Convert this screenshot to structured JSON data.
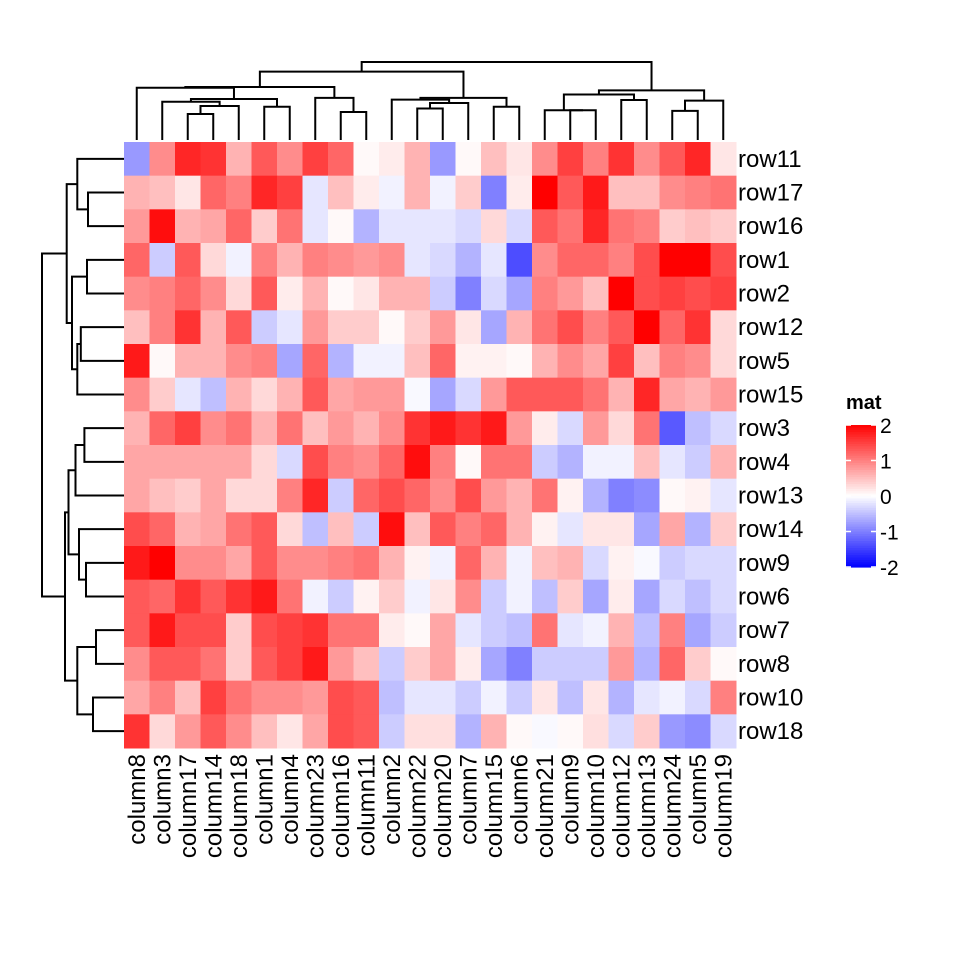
{
  "chart_data": {
    "type": "heatmap",
    "title": "",
    "legend": {
      "title": "mat",
      "ticks": [
        2,
        1,
        0,
        -1,
        -2
      ],
      "range": [
        -2,
        2
      ],
      "colors": {
        "low": "#0000FF",
        "mid": "#FFFFFF",
        "high": "#FF0000"
      },
      "placement": "right"
    },
    "columns": [
      "column8",
      "column3",
      "column17",
      "column14",
      "column18",
      "column1",
      "column4",
      "column23",
      "column16",
      "column11",
      "column2",
      "column22",
      "column20",
      "column7",
      "column15",
      "column6",
      "column21",
      "column9",
      "column10",
      "column12",
      "column13",
      "column24",
      "column5",
      "column19"
    ],
    "rows": [
      "row11",
      "row17",
      "row16",
      "row1",
      "row2",
      "row12",
      "row5",
      "row15",
      "row3",
      "row4",
      "row13",
      "row14",
      "row9",
      "row6",
      "row7",
      "row8",
      "row10",
      "row18"
    ],
    "values": [
      [
        -0.8,
        0.9,
        1.7,
        1.6,
        0.6,
        1.3,
        0.9,
        1.5,
        1.2,
        0.05,
        0.15,
        0.6,
        -0.8,
        0.05,
        0.5,
        0.2,
        0.9,
        1.5,
        1.0,
        1.6,
        0.9,
        1.3,
        1.7,
        0.2
      ],
      [
        0.6,
        0.5,
        0.2,
        1.2,
        1.0,
        1.7,
        1.5,
        -0.2,
        0.5,
        0.15,
        -0.1,
        0.6,
        -0.1,
        0.4,
        -1.0,
        0.15,
        2.0,
        1.3,
        1.8,
        0.5,
        0.5,
        0.9,
        1.0,
        1.1
      ],
      [
        0.8,
        1.9,
        0.6,
        0.7,
        1.2,
        0.4,
        1.1,
        -0.2,
        0.05,
        -0.6,
        -0.2,
        -0.2,
        -0.2,
        -0.3,
        0.3,
        -0.3,
        1.3,
        1.1,
        1.7,
        1.1,
        1.0,
        0.4,
        0.5,
        0.4
      ],
      [
        1.2,
        -0.4,
        1.3,
        0.3,
        -0.1,
        1.0,
        0.6,
        1.0,
        0.9,
        0.8,
        0.9,
        -0.2,
        -0.3,
        -0.6,
        -0.2,
        -1.4,
        0.9,
        1.2,
        1.2,
        1.0,
        1.4,
        2.0,
        2.0,
        1.4
      ],
      [
        0.9,
        1.0,
        1.2,
        0.9,
        0.3,
        1.3,
        0.15,
        0.6,
        0.05,
        0.2,
        0.6,
        0.6,
        -0.4,
        -1.0,
        -0.3,
        -0.7,
        1.0,
        0.8,
        0.5,
        2.0,
        1.4,
        1.5,
        1.4,
        1.5
      ],
      [
        0.5,
        1.0,
        1.6,
        0.6,
        1.3,
        -0.4,
        -0.2,
        0.8,
        0.4,
        0.4,
        0.05,
        0.4,
        0.8,
        0.2,
        -0.7,
        0.6,
        1.1,
        1.4,
        1.0,
        1.3,
        2.0,
        1.2,
        1.6,
        0.3
      ],
      [
        1.8,
        0.05,
        0.6,
        0.6,
        0.9,
        1.0,
        -0.7,
        1.2,
        -0.6,
        -0.1,
        -0.1,
        0.5,
        1.2,
        0.1,
        0.1,
        0.05,
        0.6,
        0.9,
        0.7,
        1.5,
        0.5,
        1.0,
        0.9,
        0.3
      ],
      [
        0.9,
        0.4,
        -0.2,
        -0.5,
        0.6,
        0.3,
        0.6,
        1.3,
        0.7,
        0.8,
        0.8,
        -0.05,
        -0.7,
        -0.3,
        0.8,
        1.3,
        1.3,
        1.3,
        1.1,
        0.6,
        1.7,
        0.7,
        0.6,
        0.8
      ],
      [
        0.6,
        1.2,
        1.5,
        0.9,
        1.1,
        0.6,
        1.1,
        0.5,
        0.8,
        0.6,
        0.9,
        1.6,
        1.8,
        1.6,
        1.8,
        0.8,
        0.15,
        -0.3,
        0.8,
        0.3,
        1.1,
        -1.3,
        -0.5,
        -0.3
      ],
      [
        0.7,
        0.7,
        0.7,
        0.7,
        0.7,
        0.3,
        -0.3,
        1.4,
        1.0,
        0.9,
        1.2,
        1.9,
        1.0,
        0.05,
        1.1,
        1.1,
        -0.4,
        -0.6,
        -0.1,
        -0.1,
        0.5,
        -0.2,
        -0.4,
        0.6
      ],
      [
        0.7,
        0.5,
        0.4,
        0.7,
        0.3,
        0.3,
        1.0,
        1.7,
        -0.4,
        1.2,
        1.4,
        1.2,
        0.9,
        1.4,
        0.8,
        0.6,
        1.1,
        0.1,
        -0.6,
        -1.0,
        -0.9,
        0.05,
        0.1,
        -0.2
      ],
      [
        1.4,
        1.2,
        0.6,
        0.7,
        1.1,
        1.3,
        0.3,
        -0.5,
        0.5,
        -0.4,
        1.9,
        0.5,
        1.3,
        1.0,
        1.2,
        0.6,
        0.1,
        -0.2,
        0.2,
        0.2,
        -0.7,
        0.7,
        -0.6,
        0.4
      ],
      [
        1.8,
        2.0,
        0.9,
        0.9,
        0.7,
        1.3,
        0.9,
        0.9,
        1.0,
        1.1,
        0.6,
        0.1,
        -0.1,
        1.2,
        0.6,
        -0.1,
        0.5,
        0.6,
        -0.3,
        0.1,
        -0.05,
        -0.4,
        -0.3,
        -0.3
      ],
      [
        1.3,
        1.2,
        1.6,
        1.3,
        1.6,
        1.8,
        1.1,
        -0.1,
        -0.4,
        0.1,
        0.4,
        -0.1,
        0.2,
        0.9,
        -0.4,
        -0.1,
        -0.5,
        0.4,
        -0.7,
        0.15,
        -0.7,
        -0.3,
        -0.5,
        -0.3
      ],
      [
        1.3,
        1.8,
        1.4,
        1.4,
        0.4,
        1.4,
        1.5,
        1.6,
        1.1,
        1.1,
        0.15,
        0.05,
        0.7,
        -0.2,
        -0.4,
        -0.5,
        1.1,
        -0.2,
        -0.1,
        0.6,
        -0.5,
        1.0,
        -0.7,
        -0.4
      ],
      [
        0.9,
        1.3,
        1.3,
        1.1,
        0.4,
        1.3,
        1.5,
        1.8,
        0.8,
        0.5,
        -0.4,
        0.4,
        0.7,
        0.15,
        -0.7,
        -1.0,
        -0.4,
        -0.4,
        -0.4,
        0.8,
        -0.6,
        1.2,
        0.4,
        0.05
      ],
      [
        0.7,
        1.0,
        0.5,
        1.5,
        1.1,
        0.9,
        0.9,
        0.8,
        1.4,
        1.3,
        -0.5,
        -0.2,
        -0.2,
        -0.4,
        -0.1,
        -0.4,
        0.2,
        -0.5,
        0.2,
        -0.6,
        -0.2,
        -0.1,
        -0.3,
        1.0
      ],
      [
        1.6,
        0.3,
        0.8,
        1.3,
        0.9,
        0.5,
        0.2,
        0.7,
        1.4,
        1.3,
        -0.4,
        0.25,
        0.25,
        -0.6,
        0.6,
        0.05,
        -0.05,
        0.05,
        0.25,
        -0.3,
        0.4,
        -0.8,
        -0.9,
        -0.3
      ]
    ]
  }
}
